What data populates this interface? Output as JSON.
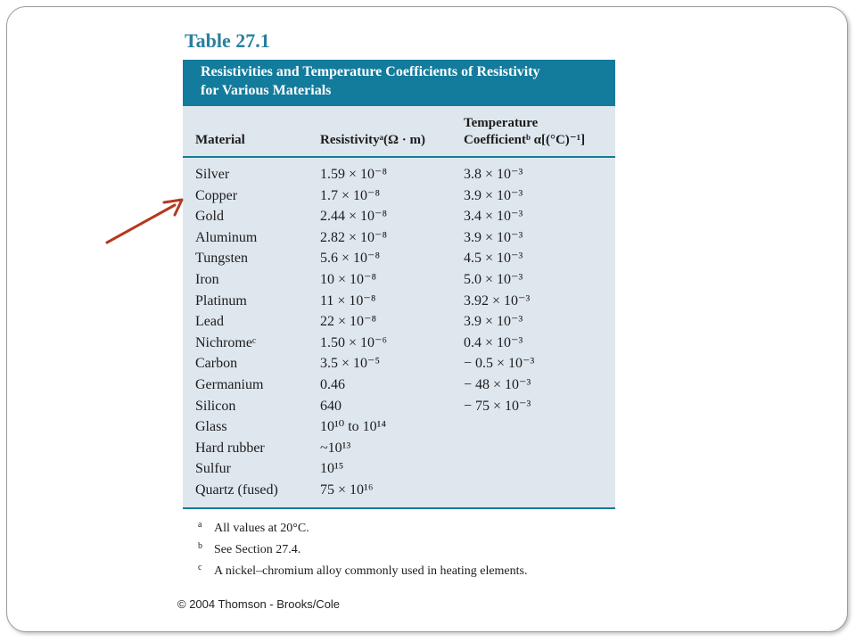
{
  "table": {
    "title": "Table 27.1",
    "caption_line1": "Resistivities and Temperature Coefficients of Resistivity",
    "caption_line2": "for Various Materials",
    "headers": {
      "material": "Material",
      "resistivity": "Resistivityᵃ(Ω · m)",
      "temp_line1": "Temperature",
      "temp_line2": "Coefficientᵇ α[(°C)⁻¹]"
    },
    "rows": [
      {
        "material": "Silver",
        "resistivity": "1.59 × 10⁻⁸",
        "temp": "3.8 × 10⁻³"
      },
      {
        "material": "Copper",
        "resistivity": "1.7 × 10⁻⁸",
        "temp": "3.9 × 10⁻³"
      },
      {
        "material": "Gold",
        "resistivity": "2.44 × 10⁻⁸",
        "temp": "3.4 × 10⁻³"
      },
      {
        "material": "Aluminum",
        "resistivity": "2.82 × 10⁻⁸",
        "temp": "3.9 × 10⁻³"
      },
      {
        "material": "Tungsten",
        "resistivity": "5.6 × 10⁻⁸",
        "temp": "4.5 × 10⁻³"
      },
      {
        "material": "Iron",
        "resistivity": "10 × 10⁻⁸",
        "temp": "5.0 × 10⁻³"
      },
      {
        "material": "Platinum",
        "resistivity": "11 × 10⁻⁸",
        "temp": "3.92 × 10⁻³"
      },
      {
        "material": "Lead",
        "resistivity": "22 × 10⁻⁸",
        "temp": "3.9 × 10⁻³"
      },
      {
        "material": "Nichromeᶜ",
        "resistivity": "1.50 × 10⁻⁶",
        "temp": "0.4 × 10⁻³"
      },
      {
        "material": "Carbon",
        "resistivity": "3.5 × 10⁻⁵",
        "temp": "− 0.5 × 10⁻³"
      },
      {
        "material": "Germanium",
        "resistivity": "0.46",
        "temp": "− 48 × 10⁻³"
      },
      {
        "material": "Silicon",
        "resistivity": "640",
        "temp": "− 75 × 10⁻³"
      },
      {
        "material": "Glass",
        "resistivity": "10¹⁰ to 10¹⁴",
        "temp": ""
      },
      {
        "material": "Hard rubber",
        "resistivity": "~10¹³",
        "temp": ""
      },
      {
        "material": "Sulfur",
        "resistivity": "10¹⁵",
        "temp": ""
      },
      {
        "material": "Quartz (fused)",
        "resistivity": "75 × 10¹⁶",
        "temp": ""
      }
    ],
    "footnotes": [
      {
        "mark": "a",
        "text": "All values at 20°C."
      },
      {
        "mark": "b",
        "text": "See Section 27.4."
      },
      {
        "mark": "c",
        "text": "A nickel–chromium alloy commonly used in heating elements."
      }
    ]
  },
  "copyright": "© 2004 Thomson - Brooks/Cole",
  "colors": {
    "accent": "#137b9c",
    "title": "#2a7f9e",
    "panel": "#dfe7ee",
    "arrow": "#b5381f"
  },
  "annotation": {
    "icon": "arrow-icon",
    "points_to_row": "Copper"
  }
}
